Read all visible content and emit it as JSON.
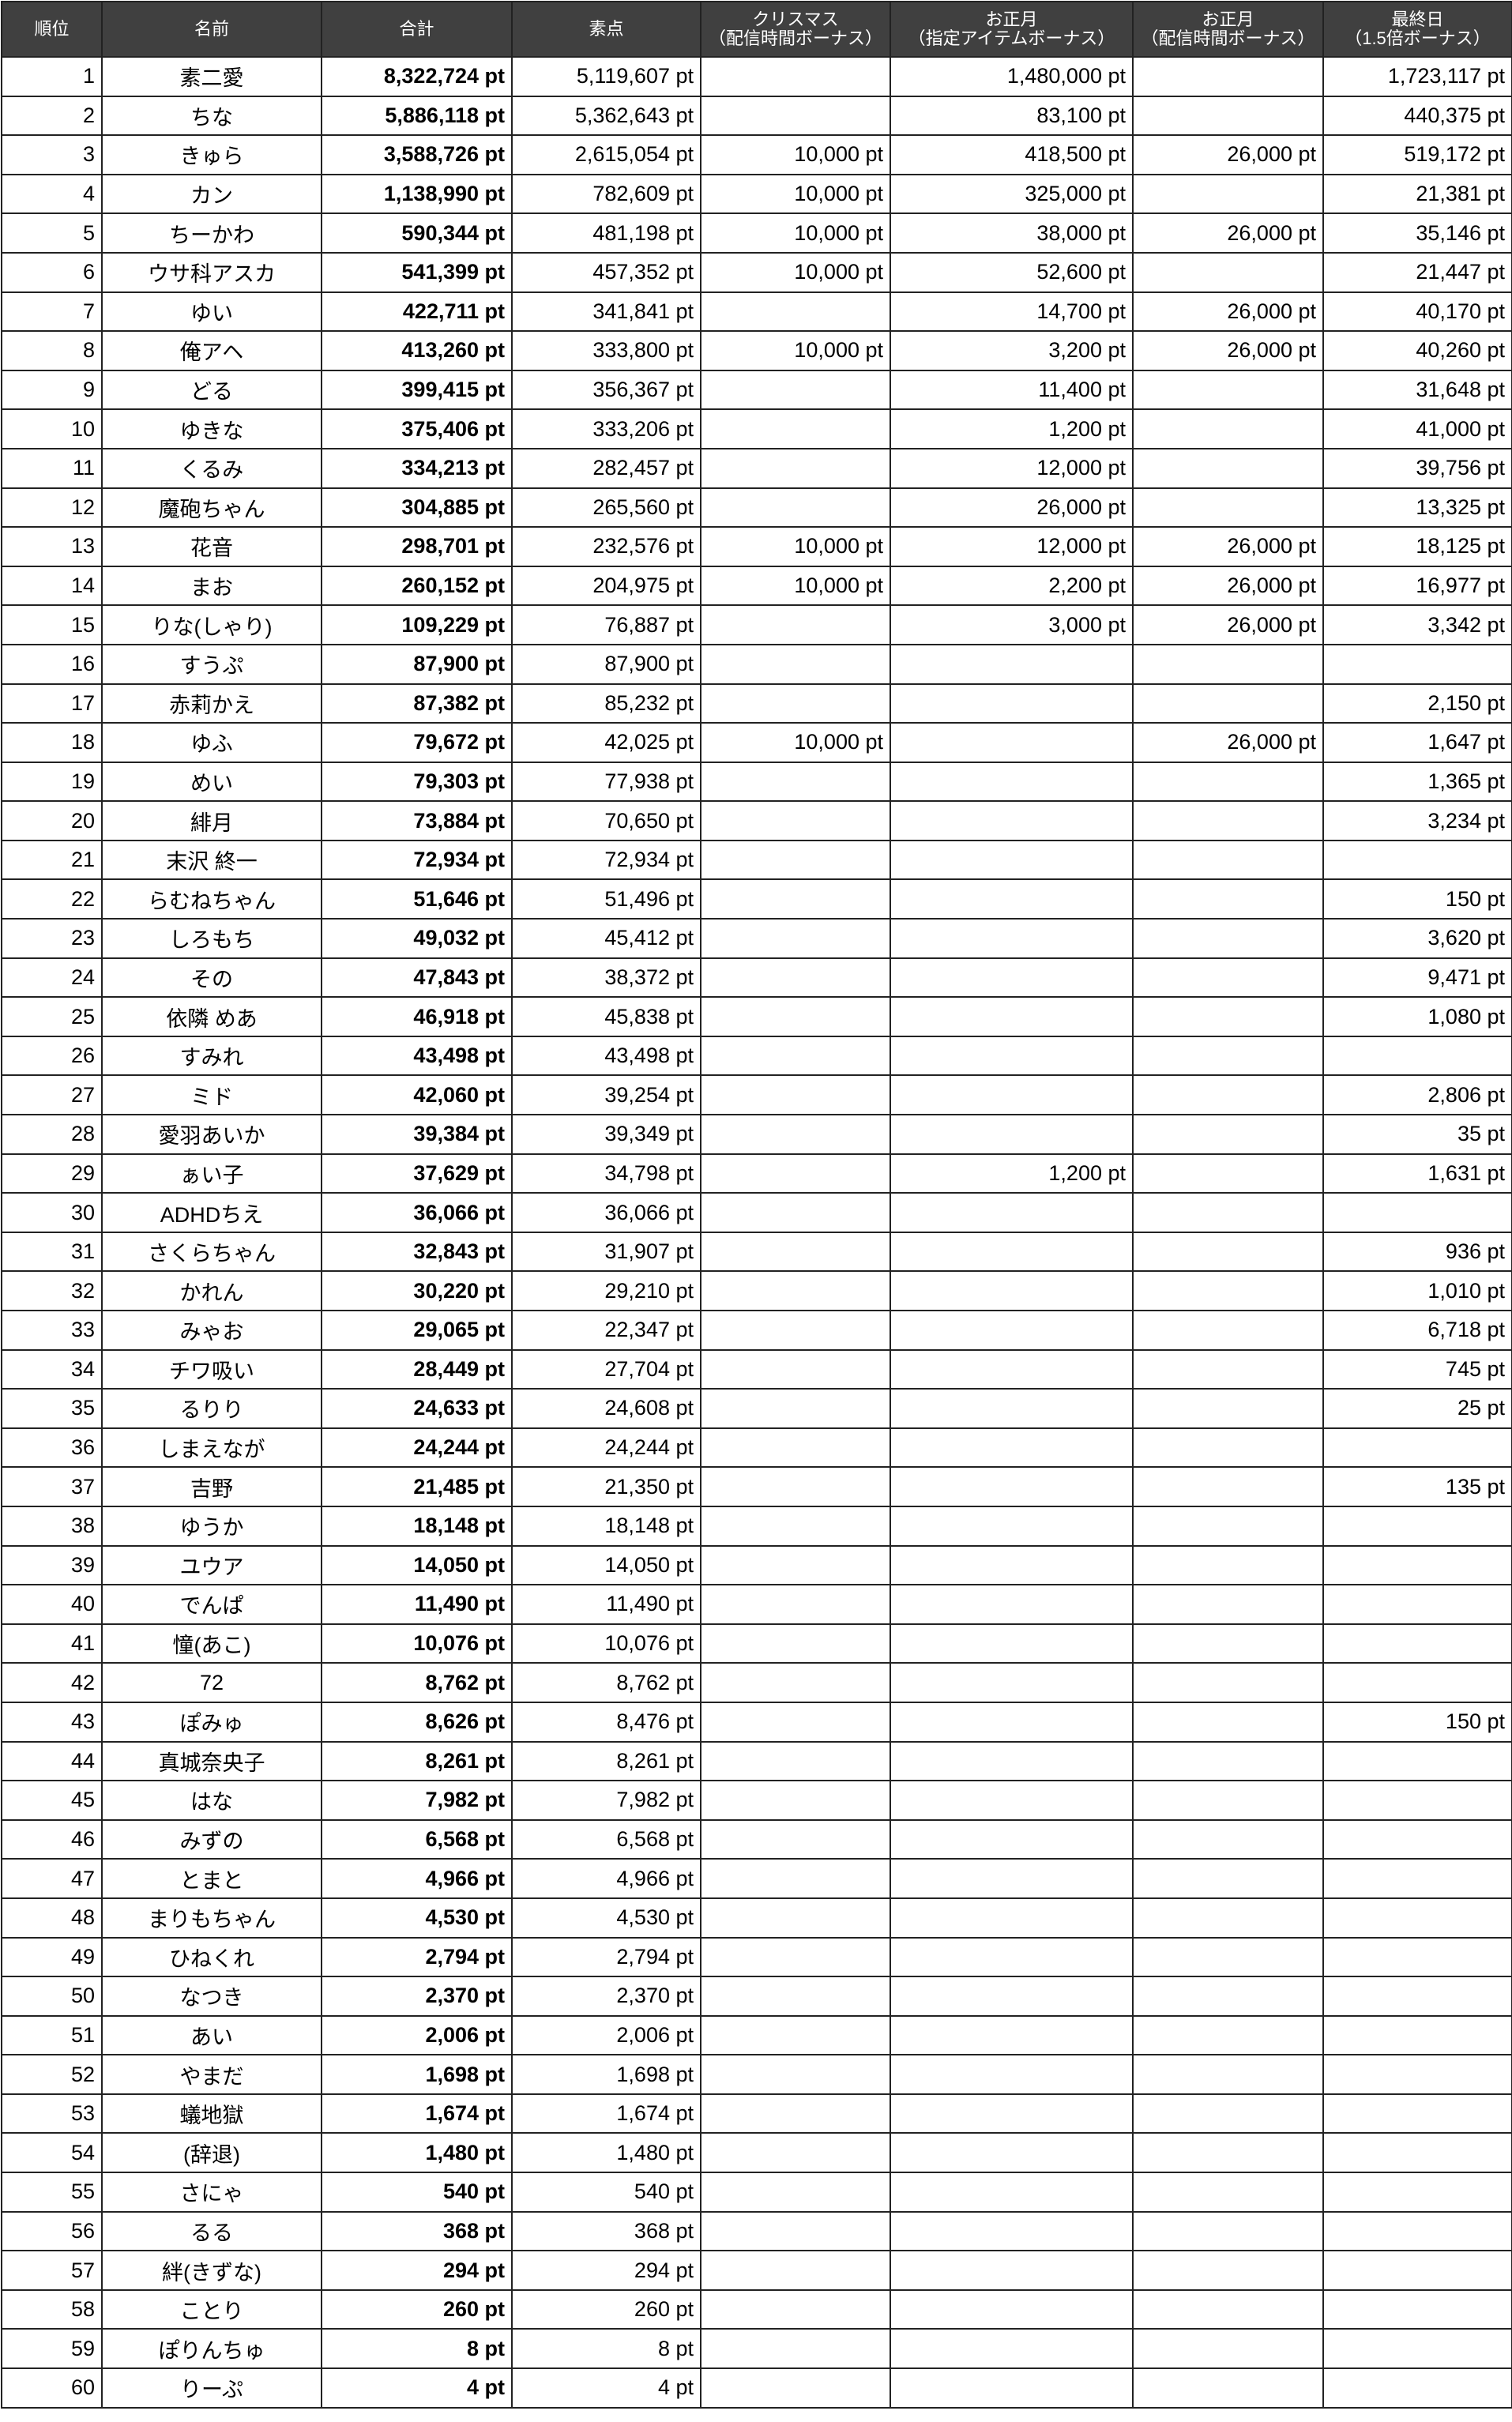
{
  "headers": [
    {
      "line1": "順位",
      "line2": ""
    },
    {
      "line1": "名前",
      "line2": ""
    },
    {
      "line1": "合計",
      "line2": ""
    },
    {
      "line1": "素点",
      "line2": ""
    },
    {
      "line1": "クリスマス",
      "line2": "（配信時間ボーナス）"
    },
    {
      "line1": "お正月",
      "line2": "（指定アイテムボーナス）"
    },
    {
      "line1": "お正月",
      "line2": "（配信時間ボーナス）"
    },
    {
      "line1": "最終日",
      "line2": "（1.5倍ボーナス）"
    }
  ],
  "rows": [
    [
      "1",
      "素二愛",
      "8,322,724 pt",
      "5,119,607 pt",
      "",
      "1,480,000 pt",
      "",
      "1,723,117 pt"
    ],
    [
      "2",
      "ちな",
      "5,886,118 pt",
      "5,362,643 pt",
      "",
      "83,100 pt",
      "",
      "440,375 pt"
    ],
    [
      "3",
      "きゅら",
      "3,588,726 pt",
      "2,615,054 pt",
      "10,000 pt",
      "418,500 pt",
      "26,000 pt",
      "519,172 pt"
    ],
    [
      "4",
      "カン",
      "1,138,990 pt",
      "782,609 pt",
      "10,000 pt",
      "325,000 pt",
      "",
      "21,381 pt"
    ],
    [
      "5",
      "ちーかわ",
      "590,344 pt",
      "481,198 pt",
      "10,000 pt",
      "38,000 pt",
      "26,000 pt",
      "35,146 pt"
    ],
    [
      "6",
      "ウサ科アスカ",
      "541,399 pt",
      "457,352 pt",
      "10,000 pt",
      "52,600 pt",
      "",
      "21,447 pt"
    ],
    [
      "7",
      "ゆい",
      "422,711 pt",
      "341,841 pt",
      "",
      "14,700 pt",
      "26,000 pt",
      "40,170 pt"
    ],
    [
      "8",
      "俺アヘ",
      "413,260 pt",
      "333,800 pt",
      "10,000 pt",
      "3,200 pt",
      "26,000 pt",
      "40,260 pt"
    ],
    [
      "9",
      "どる",
      "399,415 pt",
      "356,367 pt",
      "",
      "11,400 pt",
      "",
      "31,648 pt"
    ],
    [
      "10",
      "ゆきな",
      "375,406 pt",
      "333,206 pt",
      "",
      "1,200 pt",
      "",
      "41,000 pt"
    ],
    [
      "11",
      "くるみ",
      "334,213 pt",
      "282,457 pt",
      "",
      "12,000 pt",
      "",
      "39,756 pt"
    ],
    [
      "12",
      "魔砲ちゃん",
      "304,885 pt",
      "265,560 pt",
      "",
      "26,000 pt",
      "",
      "13,325 pt"
    ],
    [
      "13",
      "花音",
      "298,701 pt",
      "232,576 pt",
      "10,000 pt",
      "12,000 pt",
      "26,000 pt",
      "18,125 pt"
    ],
    [
      "14",
      "まお",
      "260,152 pt",
      "204,975 pt",
      "10,000 pt",
      "2,200 pt",
      "26,000 pt",
      "16,977 pt"
    ],
    [
      "15",
      "りな(しゃり)",
      "109,229 pt",
      "76,887 pt",
      "",
      "3,000 pt",
      "26,000 pt",
      "3,342 pt"
    ],
    [
      "16",
      "すうぷ",
      "87,900 pt",
      "87,900 pt",
      "",
      "",
      "",
      ""
    ],
    [
      "17",
      "赤莉かえ",
      "87,382 pt",
      "85,232 pt",
      "",
      "",
      "",
      "2,150 pt"
    ],
    [
      "18",
      "ゆふ",
      "79,672 pt",
      "42,025 pt",
      "10,000 pt",
      "",
      "26,000 pt",
      "1,647 pt"
    ],
    [
      "19",
      "めい",
      "79,303 pt",
      "77,938 pt",
      "",
      "",
      "",
      "1,365 pt"
    ],
    [
      "20",
      "緋月",
      "73,884 pt",
      "70,650 pt",
      "",
      "",
      "",
      "3,234 pt"
    ],
    [
      "21",
      "末沢 終一",
      "72,934 pt",
      "72,934 pt",
      "",
      "",
      "",
      ""
    ],
    [
      "22",
      "らむねちゃん",
      "51,646 pt",
      "51,496 pt",
      "",
      "",
      "",
      "150 pt"
    ],
    [
      "23",
      "しろもち",
      "49,032 pt",
      "45,412 pt",
      "",
      "",
      "",
      "3,620 pt"
    ],
    [
      "24",
      "その",
      "47,843 pt",
      "38,372 pt",
      "",
      "",
      "",
      "9,471 pt"
    ],
    [
      "25",
      "依隣 めあ",
      "46,918 pt",
      "45,838 pt",
      "",
      "",
      "",
      "1,080 pt"
    ],
    [
      "26",
      "すみれ",
      "43,498 pt",
      "43,498 pt",
      "",
      "",
      "",
      ""
    ],
    [
      "27",
      "ミド",
      "42,060 pt",
      "39,254 pt",
      "",
      "",
      "",
      "2,806 pt"
    ],
    [
      "28",
      "愛羽あいか",
      "39,384 pt",
      "39,349 pt",
      "",
      "",
      "",
      "35 pt"
    ],
    [
      "29",
      "ぁい子",
      "37,629 pt",
      "34,798 pt",
      "",
      "1,200 pt",
      "",
      "1,631 pt"
    ],
    [
      "30",
      "ADHDちえ",
      "36,066 pt",
      "36,066 pt",
      "",
      "",
      "",
      ""
    ],
    [
      "31",
      "さくらちゃん",
      "32,843 pt",
      "31,907 pt",
      "",
      "",
      "",
      "936 pt"
    ],
    [
      "32",
      "かれん",
      "30,220 pt",
      "29,210 pt",
      "",
      "",
      "",
      "1,010 pt"
    ],
    [
      "33",
      "みゃお",
      "29,065 pt",
      "22,347 pt",
      "",
      "",
      "",
      "6,718 pt"
    ],
    [
      "34",
      "チワ吸い",
      "28,449 pt",
      "27,704 pt",
      "",
      "",
      "",
      "745 pt"
    ],
    [
      "35",
      "るりり",
      "24,633 pt",
      "24,608 pt",
      "",
      "",
      "",
      "25 pt"
    ],
    [
      "36",
      "しまえなが",
      "24,244 pt",
      "24,244 pt",
      "",
      "",
      "",
      ""
    ],
    [
      "37",
      "吉野",
      "21,485 pt",
      "21,350 pt",
      "",
      "",
      "",
      "135 pt"
    ],
    [
      "38",
      "ゆうか",
      "18,148 pt",
      "18,148 pt",
      "",
      "",
      "",
      ""
    ],
    [
      "39",
      "ユウア",
      "14,050 pt",
      "14,050 pt",
      "",
      "",
      "",
      ""
    ],
    [
      "40",
      "でんぱ",
      "11,490 pt",
      "11,490 pt",
      "",
      "",
      "",
      ""
    ],
    [
      "41",
      "憧(あこ)",
      "10,076 pt",
      "10,076 pt",
      "",
      "",
      "",
      ""
    ],
    [
      "42",
      "72",
      "8,762 pt",
      "8,762 pt",
      "",
      "",
      "",
      ""
    ],
    [
      "43",
      "ぽみゅ",
      "8,626 pt",
      "8,476 pt",
      "",
      "",
      "",
      "150 pt"
    ],
    [
      "44",
      "真城奈央子",
      "8,261 pt",
      "8,261 pt",
      "",
      "",
      "",
      ""
    ],
    [
      "45",
      "はな",
      "7,982 pt",
      "7,982 pt",
      "",
      "",
      "",
      ""
    ],
    [
      "46",
      "みずの",
      "6,568 pt",
      "6,568 pt",
      "",
      "",
      "",
      ""
    ],
    [
      "47",
      "とまと",
      "4,966 pt",
      "4,966 pt",
      "",
      "",
      "",
      ""
    ],
    [
      "48",
      "まりもちゃん",
      "4,530 pt",
      "4,530 pt",
      "",
      "",
      "",
      ""
    ],
    [
      "49",
      "ひねくれ",
      "2,794 pt",
      "2,794 pt",
      "",
      "",
      "",
      ""
    ],
    [
      "50",
      "なつき",
      "2,370 pt",
      "2,370 pt",
      "",
      "",
      "",
      ""
    ],
    [
      "51",
      "あい",
      "2,006 pt",
      "2,006 pt",
      "",
      "",
      "",
      ""
    ],
    [
      "52",
      "やまだ",
      "1,698 pt",
      "1,698 pt",
      "",
      "",
      "",
      ""
    ],
    [
      "53",
      "蟻地獄",
      "1,674 pt",
      "1,674 pt",
      "",
      "",
      "",
      ""
    ],
    [
      "54",
      "(辞退)",
      "1,480 pt",
      "1,480 pt",
      "",
      "",
      "",
      ""
    ],
    [
      "55",
      "さにゃ",
      "540 pt",
      "540 pt",
      "",
      "",
      "",
      ""
    ],
    [
      "56",
      "るる",
      "368 pt",
      "368 pt",
      "",
      "",
      "",
      ""
    ],
    [
      "57",
      "絆(きずな)",
      "294 pt",
      "294 pt",
      "",
      "",
      "",
      ""
    ],
    [
      "58",
      "ことり",
      "260 pt",
      "260 pt",
      "",
      "",
      "",
      ""
    ],
    [
      "59",
      "ぽりんちゅ",
      "8 pt",
      "8 pt",
      "",
      "",
      "",
      ""
    ],
    [
      "60",
      "りーぷ",
      "4 pt",
      "4 pt",
      "",
      "",
      "",
      ""
    ]
  ],
  "colors": {
    "header_bg": "#404040",
    "header_text": "#ffffff",
    "border": "#222222"
  }
}
